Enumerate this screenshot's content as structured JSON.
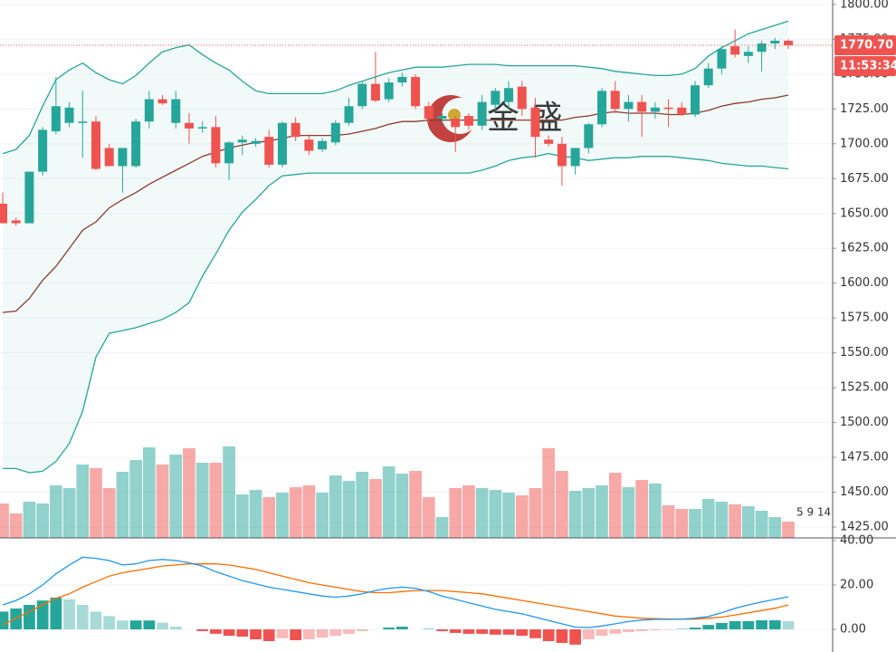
{
  "chart_data": {
    "type": "candlestick",
    "open": [
      1657,
      1645,
      1643,
      1680,
      1709,
      1715,
      1715,
      1716,
      1697,
      1684,
      1684,
      1716,
      1732,
      1715,
      1715,
      1711,
      1712,
      1686,
      1701,
      1700,
      1705,
      1685,
      1715,
      1703,
      1696,
      1701,
      1715,
      1727,
      1743,
      1732,
      1744,
      1748,
      1727,
      1718,
      1718,
      1720,
      1713,
      1728,
      1730,
      1741,
      1726,
      1703,
      1700,
      1684,
      1697,
      1714,
      1738,
      1725,
      1730,
      1723,
      1726,
      1726,
      1721,
      1742,
      1754,
      1770,
      1763,
      1766,
      1772,
      1774
    ],
    "high": [
      1665,
      1647,
      1680,
      1712,
      1748,
      1730,
      1738,
      1720,
      1700,
      1697,
      1718,
      1738,
      1735,
      1738,
      1722,
      1716,
      1720,
      1702,
      1706,
      1704,
      1710,
      1716,
      1719,
      1707,
      1704,
      1717,
      1733,
      1745,
      1766,
      1747,
      1751,
      1750,
      1730,
      1722,
      1720,
      1722,
      1735,
      1740,
      1745,
      1745,
      1733,
      1706,
      1705,
      1697,
      1715,
      1740,
      1745,
      1735,
      1735,
      1730,
      1732,
      1730,
      1745,
      1758,
      1770,
      1782,
      1770,
      1774,
      1776,
      1775
    ],
    "low": [
      1643,
      1641,
      1643,
      1677,
      1707,
      1712,
      1690,
      1681,
      1684,
      1665,
      1683,
      1711,
      1728,
      1711,
      1700,
      1708,
      1683,
      1674,
      1692,
      1698,
      1683,
      1683,
      1702,
      1692,
      1694,
      1699,
      1713,
      1725,
      1730,
      1730,
      1741,
      1725,
      1715,
      1714,
      1694,
      1710,
      1710,
      1724,
      1725,
      1720,
      1690,
      1698,
      1670,
      1678,
      1693,
      1712,
      1722,
      1716,
      1705,
      1718,
      1712,
      1720,
      1719,
      1740,
      1750,
      1762,
      1758,
      1752,
      1768,
      1768
    ],
    "close": [
      1643,
      1643,
      1680,
      1710,
      1727,
      1726,
      1716,
      1682,
      1684,
      1697,
      1716,
      1732,
      1729,
      1732,
      1711,
      1712,
      1686,
      1701,
      1703,
      1702,
      1685,
      1715,
      1705,
      1695,
      1702,
      1715,
      1727,
      1743,
      1731,
      1744,
      1748,
      1727,
      1718,
      1720,
      1712,
      1713,
      1730,
      1738,
      1740,
      1725,
      1705,
      1700,
      1684,
      1697,
      1714,
      1738,
      1725,
      1730,
      1723,
      1726,
      1725,
      1721,
      1742,
      1754,
      1768,
      1764,
      1766,
      1772,
      1774,
      1770.7
    ],
    "volume": [
      38,
      27,
      40,
      38,
      58,
      55,
      81,
      77,
      55,
      73,
      86,
      100,
      81,
      92,
      99,
      83,
      83,
      101,
      48,
      53,
      45,
      50,
      56,
      58,
      50,
      69,
      63,
      73,
      65,
      79,
      71,
      74,
      45,
      23,
      55,
      58,
      55,
      53,
      50,
      47,
      55,
      99,
      74,
      52,
      55,
      58,
      72,
      56,
      64,
      60,
      36,
      32,
      32,
      43,
      40,
      37,
      35,
      30,
      23,
      18
    ],
    "up_color": "#26a69a",
    "down_color": "#ef5350",
    "bollinger": {
      "upper": [
        1693,
        1696,
        1706,
        1727,
        1746,
        1753,
        1758,
        1751,
        1746,
        1743,
        1749,
        1758,
        1766,
        1769,
        1771,
        1764,
        1758,
        1753,
        1745,
        1738,
        1736,
        1736,
        1736,
        1736,
        1736,
        1738,
        1742,
        1745,
        1748,
        1751,
        1753,
        1755,
        1755,
        1755,
        1756,
        1757,
        1757,
        1757,
        1756,
        1756,
        1756,
        1756,
        1756,
        1756,
        1755,
        1754,
        1752,
        1751,
        1750,
        1749,
        1749,
        1750,
        1754,
        1763,
        1769,
        1774,
        1779,
        1782,
        1785,
        1788
      ],
      "middle": [
        1579,
        1580,
        1589,
        1602,
        1612,
        1625,
        1638,
        1644,
        1654,
        1660,
        1665,
        1671,
        1676,
        1681,
        1686,
        1691,
        1694,
        1697,
        1699,
        1701,
        1702,
        1704,
        1706,
        1706,
        1706,
        1706,
        1707,
        1709,
        1711,
        1714,
        1716,
        1716,
        1717,
        1717,
        1717,
        1717,
        1717,
        1717,
        1717,
        1717,
        1717,
        1717,
        1717,
        1719,
        1720,
        1722,
        1723,
        1722,
        1722,
        1722,
        1721,
        1721,
        1722,
        1724,
        1727,
        1729,
        1730,
        1732,
        1733,
        1735
      ],
      "lower": [
        1467,
        1467,
        1464,
        1465,
        1472,
        1485,
        1508,
        1547,
        1564,
        1566,
        1568,
        1571,
        1574,
        1579,
        1586,
        1605,
        1621,
        1638,
        1651,
        1660,
        1670,
        1677,
        1678,
        1679,
        1679,
        1679,
        1679,
        1679,
        1679,
        1679,
        1679,
        1679,
        1679,
        1679,
        1679,
        1679,
        1681,
        1684,
        1688,
        1690,
        1691,
        1693,
        1691,
        1690,
        1688,
        1689,
        1690,
        1690,
        1691,
        1691,
        1691,
        1690,
        1689,
        1688,
        1686,
        1685,
        1684,
        1684,
        1683,
        1682
      ],
      "line_color": "#26a69a",
      "middle_color": "#8b3a2f",
      "fill": "#26a69a"
    },
    "ylim": [
      1417.2,
      1803.2
    ],
    "yticks": [
      {
        "value": 1425,
        "label": "1425.00"
      },
      {
        "value": 1450,
        "label": "1450.00"
      },
      {
        "value": 1475,
        "label": "1475.00"
      },
      {
        "value": 1500,
        "label": "1500.00"
      },
      {
        "value": 1525,
        "label": "1525.00"
      },
      {
        "value": 1550,
        "label": "1550.00"
      },
      {
        "value": 1575,
        "label": "1575.00"
      },
      {
        "value": 1600,
        "label": "1600.00"
      },
      {
        "value": 1625,
        "label": "1625.00"
      },
      {
        "value": 1650,
        "label": "1650.00"
      },
      {
        "value": 1675,
        "label": "1675.00"
      },
      {
        "value": 1700,
        "label": "1700.00"
      },
      {
        "value": 1725,
        "label": "1725.00"
      },
      {
        "value": 1750,
        "label": "1750.00"
      },
      {
        "value": 1775,
        "label": "1775.00"
      },
      {
        "value": 1800,
        "label": "1800.00"
      }
    ],
    "grid": true,
    "last_price": {
      "value": 1770.7,
      "label": "1770.70"
    },
    "countdown": "11:53:34",
    "watermark": "金 盛",
    "indicator_label": "5 9 14",
    "macd": {
      "ylim": [
        -10.2,
        41.2
      ],
      "yticks": [
        {
          "value": 0,
          "label": "0.00"
        },
        {
          "value": 20,
          "label": "20.00"
        },
        {
          "value": 40,
          "label": "40.00"
        }
      ],
      "macd": [
        11,
        13,
        16,
        20,
        25,
        29,
        32.5,
        32,
        31,
        29,
        29.5,
        31,
        31.5,
        31,
        30,
        28.5,
        26,
        24,
        22,
        20.5,
        19,
        18,
        17,
        16,
        15,
        14.5,
        15,
        16,
        17.5,
        18.5,
        19,
        18.5,
        17,
        15,
        13.5,
        12,
        10.5,
        9,
        8,
        7,
        5.5,
        4,
        2.5,
        1,
        0.8,
        1.5,
        2.5,
        3.5,
        4.2,
        4.5,
        4.5,
        4.6,
        5,
        5.8,
        7.5,
        9.5,
        11,
        12.3,
        13.5,
        14.7
      ],
      "signal": [
        2,
        5,
        8,
        11,
        14,
        16,
        19,
        21.5,
        24,
        25.5,
        26.5,
        27.5,
        28.5,
        29,
        29.5,
        29.5,
        29.5,
        29,
        28,
        27,
        25.5,
        24,
        22.5,
        21,
        20,
        19,
        18,
        17,
        16.5,
        16.5,
        17,
        17.5,
        17.5,
        17.5,
        17,
        16.5,
        16,
        15,
        14,
        13,
        12,
        11,
        10,
        9,
        8,
        7,
        6,
        5.5,
        5,
        4.8,
        4.7,
        4.6,
        4.6,
        5,
        5.5,
        6.5,
        7.5,
        8.5,
        9.5,
        11
      ],
      "histogram": [
        8,
        9.4,
        11,
        13,
        14.3,
        13.5,
        11,
        8,
        6,
        4,
        4,
        4,
        3,
        1.2,
        0,
        -0.8,
        -2,
        -2.9,
        -3.3,
        -4.5,
        -5.3,
        -4,
        -4.9,
        -4.5,
        -3.7,
        -2.9,
        -2,
        -0.8,
        0,
        0.8,
        1.2,
        0,
        0.2,
        -0.8,
        -1.6,
        -2,
        -2,
        -2.4,
        -2.4,
        -2.9,
        -4,
        -5.3,
        -6.1,
        -6.9,
        -4.5,
        -2.9,
        -2,
        -1.2,
        -0.8,
        -0.4,
        -0.2,
        0.2,
        0.8,
        2,
        2.9,
        3.7,
        3.7,
        4.1,
        4.1,
        3.7
      ],
      "macd_color": "#2196f3",
      "signal_color": "#ff6d00"
    }
  }
}
